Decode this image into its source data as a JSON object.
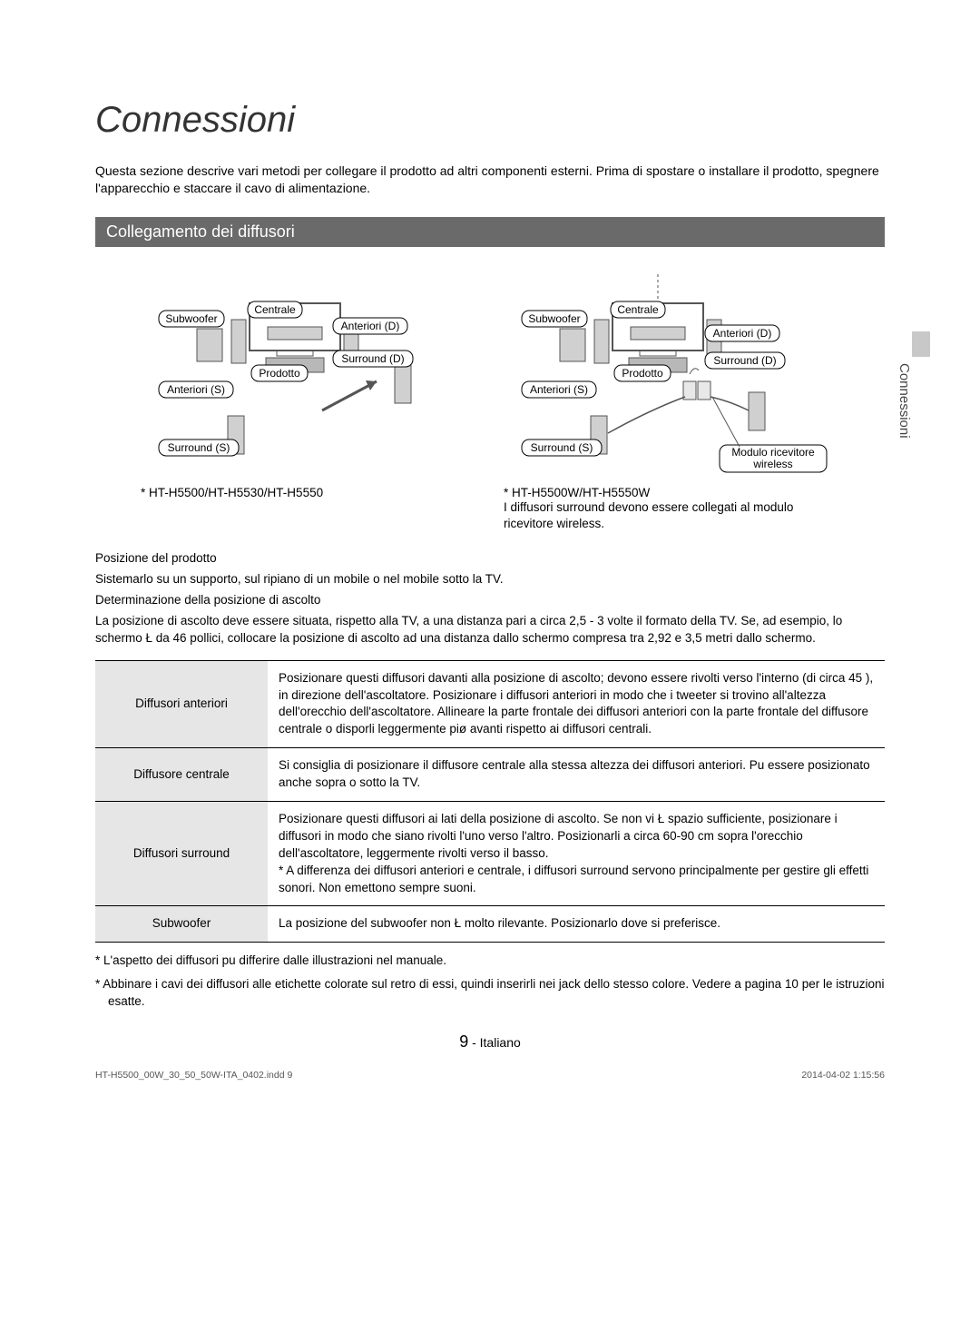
{
  "title": "Connessioni",
  "intro": "Questa sezione descrive vari metodi per collegare il prodotto ad altri componenti esterni. Prima di spostare o installare il prodotto, spegnere l'apparecchio e staccare il cavo di alimentazione.",
  "section_heading": "Collegamento dei diffusori",
  "side_tab": "Connessioni",
  "diagram_labels": {
    "subwoofer": "Subwoofer",
    "centrale": "Centrale",
    "anteriori_d": "Anteriori (D)",
    "surround_d": "Surround (D)",
    "prodotto": "Prodotto",
    "anteriori_s": "Anteriori (S)",
    "surround_s": "Surround (S)",
    "modulo_wireless_1": "Modulo ricevitore",
    "modulo_wireless_2": "wireless"
  },
  "left_model": "* HT-H5500/HT-H5530/HT-H5550",
  "right_model": "* HT-H5500W/HT-H5550W",
  "right_model_note": "I diffusori surround devono essere collegati al modulo ricevitore wireless.",
  "position_heading": "Posizione del prodotto",
  "position_text": "Sistemarlo su un supporto, sul ripiano di un mobile o nel mobile sotto la TV.",
  "listening_heading": "Determinazione della posizione di ascolto",
  "listening_text": "La posizione di ascolto deve essere situata, rispetto alla TV, a una distanza pari a circa 2,5 - 3 volte il formato della TV. Se, ad esempio, lo schermo Ł da 46 pollici, collocare la posizione di ascolto ad una distanza dallo schermo compresa tra 2,92 e 3,5 metri dallo schermo.",
  "table": {
    "rows": [
      {
        "label": "Diffusori anteriori",
        "text": "Posizionare questi diffusori davanti alla posizione di ascolto; devono essere rivolti verso l'interno (di circa 45 ), in direzione dell'ascoltatore. Posizionare i diffusori anteriori in modo che i tweeter si trovino all'altezza dell'orecchio dell'ascoltatore. Allineare la parte frontale dei diffusori anteriori con la parte frontale del diffusore centrale o disporli leggermente piø avanti rispetto ai diffusori centrali."
      },
      {
        "label": "Diffusore centrale",
        "text": "Si consiglia di posizionare il diffusore centrale alla stessa altezza dei diffusori anteriori. Pu  essere posizionato anche sopra o sotto la TV."
      },
      {
        "label": "Diffusori surround",
        "text": "Posizionare questi diffusori ai lati della posizione di ascolto. Se non vi Ł spazio sufficiente, posizionare i diffusori in modo che siano rivolti l'uno verso l'altro. Posizionarli a circa 60-90 cm sopra l'orecchio dell'ascoltatore, leggermente rivolti verso il basso.\n* A differenza dei diffusori anteriori e centrale, i diffusori surround servono principalmente per gestire gli effetti sonori. Non emettono sempre suoni."
      },
      {
        "label": "Subwoofer",
        "text": "La posizione del subwoofer non Ł molto rilevante. Posizionarlo dove si preferisce."
      }
    ]
  },
  "footnotes": [
    "*  L'aspetto dei diffusori pu  differire dalle illustrazioni nel manuale.",
    "*  Abbinare i cavi dei diffusori alle etichette colorate sul retro di essi, quindi inserirli nei jack dello stesso colore. Vedere a pagina 10 per le istruzioni esatte."
  ],
  "page_number": "9",
  "page_lang": " - Italiano",
  "print_left": "HT-H5500_00W_30_50_50W-ITA_0402.indd   9",
  "print_right": "2014-04-02     1:15:56",
  "colors": {
    "section_bar_bg": "#6a6a6a",
    "table_label_bg": "#e6e6e6",
    "side_tab_bg": "#c8c8c8",
    "speaker_fill": "#d0d0d0",
    "unit_fill": "#b8b8b8"
  }
}
